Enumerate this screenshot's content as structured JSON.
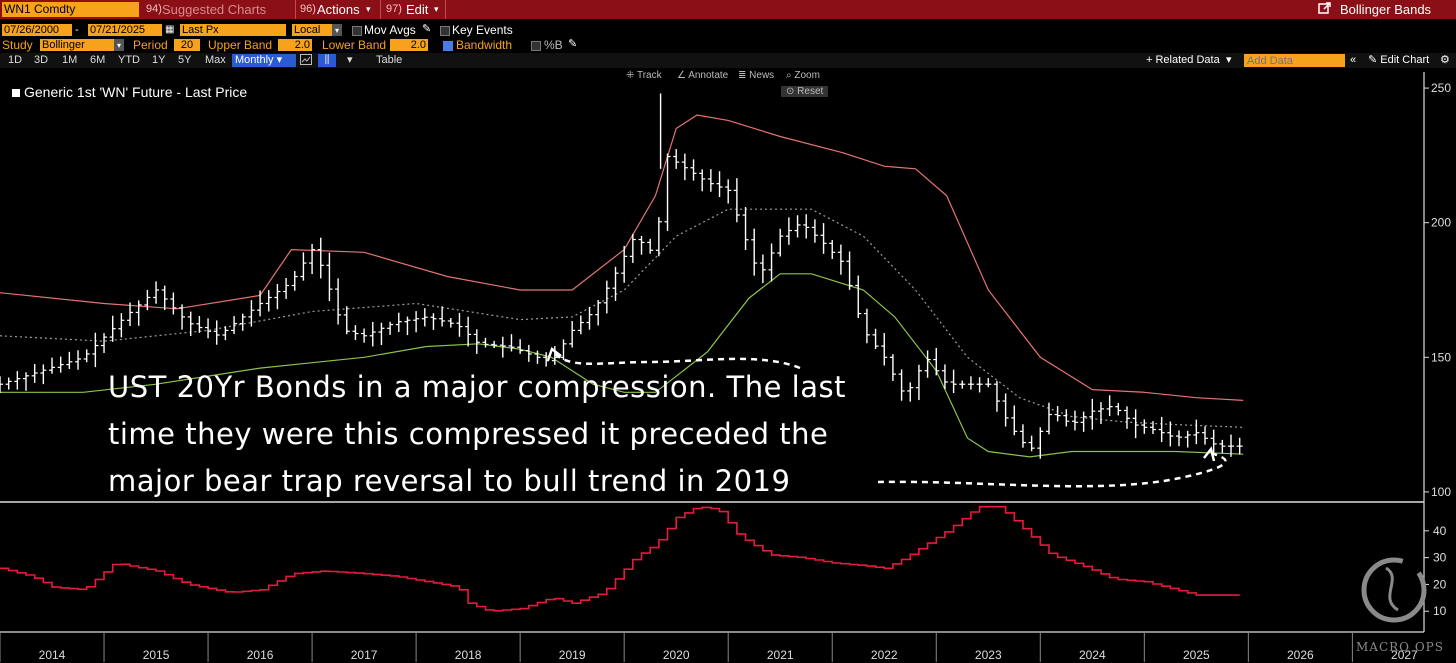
{
  "header": {
    "ticker": "WN1 Comdty",
    "suggested": "Suggested Charts",
    "suggested_num": "94)",
    "actions_num": "96)",
    "actions": "Actions",
    "edit_num": "97)",
    "edit": "Edit",
    "study_title": "Bollinger Bands"
  },
  "settings": {
    "date_start": "07/26/2000",
    "date_end": "07/21/2025",
    "dash": "-",
    "price_field": "Last Px",
    "currency": "Local CCY",
    "mov_avgs": "Mov Avgs",
    "key_events": "Key Events",
    "study_label": "Study",
    "study_value": "Bollinger",
    "period_label": "Period",
    "period_value": "20",
    "upper_label": "Upper Band",
    "upper_value": "2.0",
    "lower_label": "Lower Band",
    "lower_value": "2.0",
    "bandwidth": "Bandwidth",
    "percent_b": "%B"
  },
  "timeframes": [
    "1D",
    "3D",
    "1M",
    "6M",
    "YTD",
    "1Y",
    "5Y",
    "Max"
  ],
  "frequency": "Monthly",
  "table_label": "Table",
  "related_data": "+ Related Data",
  "add_data_placeholder": "Add Data",
  "edit_chart": "Edit Chart",
  "tools": {
    "track": "Track",
    "annotate": "Annotate",
    "news": "News",
    "zoom": "Zoom",
    "reset": "Reset"
  },
  "legend_label": "Generic 1st 'WN' Future - Last Price",
  "annotation": [
    "UST 20Yr Bonds in a major compression. The last",
    "time they were this compressed it preceded the",
    "major bear trap reversal to bull trend in 2019"
  ],
  "watermark": "MACRO OPS",
  "colors": {
    "price": "#ffffff",
    "upper_band": "#e57373",
    "middle_band": "#9e9e9e",
    "lower_band": "#8bc34a",
    "bandwidth": "#e8193c",
    "brand_bar": "#8b0f16",
    "accent": "#f7a21b"
  },
  "chart_data": [
    {
      "type": "line",
      "name": "price-panel",
      "legend": "Generic 1st 'WN' Future - Last Price",
      "y_ticks": [
        100,
        150,
        200,
        250
      ],
      "ylim": [
        97,
        253
      ],
      "xlim": [
        2013.5,
        2027.15
      ],
      "x_ticks": [
        "2014",
        "2015",
        "2016",
        "2017",
        "2018",
        "2019",
        "2020",
        "2021",
        "2022",
        "2023",
        "2024",
        "2025",
        "2026",
        "2027"
      ],
      "series": [
        {
          "name": "Last Price",
          "x": [
            2013.5,
            2013.9,
            2014.3,
            2014.7,
            2015.0,
            2015.3,
            2015.6,
            2016.0,
            2016.3,
            2016.5,
            2016.6,
            2016.8,
            2017.0,
            2017.3,
            2017.6,
            2017.9,
            2018.1,
            2018.4,
            2018.8,
            2019.0,
            2019.2,
            2019.4,
            2019.6,
            2019.8,
            2019.9,
            2020.1,
            2020.3,
            2020.5,
            2020.7,
            2020.8,
            2021.0,
            2021.2,
            2021.4,
            2021.6,
            2021.8,
            2022.0,
            2022.2,
            2022.4,
            2022.6,
            2022.8,
            2023.0,
            2023.2,
            2023.4,
            2023.6,
            2023.8,
            2024.0,
            2024.2,
            2024.4,
            2024.6,
            2024.8,
            2025.0,
            2025.2,
            2025.45
          ],
          "y": [
            140,
            145,
            150,
            165,
            175,
            163,
            158,
            170,
            178,
            190,
            183,
            160,
            158,
            163,
            165,
            162,
            155,
            154,
            148,
            160,
            167,
            180,
            195,
            188,
            225,
            220,
            215,
            212,
            190,
            180,
            195,
            200,
            193,
            185,
            160,
            150,
            135,
            150,
            140,
            140,
            140,
            125,
            115,
            130,
            125,
            130,
            132,
            125,
            123,
            120,
            122,
            117,
            117
          ]
        },
        {
          "name": "Upper Band",
          "x": [
            2013.5,
            2014.5,
            2015.2,
            2016.0,
            2016.3,
            2017.0,
            2017.8,
            2018.5,
            2019.0,
            2019.5,
            2019.8,
            2020.0,
            2020.2,
            2020.5,
            2021.0,
            2021.6,
            2022.0,
            2022.3,
            2022.6,
            2023.0,
            2023.5,
            2024.0,
            2024.5,
            2025.0,
            2025.45
          ],
          "y": [
            174,
            170,
            168,
            173,
            190,
            189,
            180,
            175,
            175,
            190,
            210,
            235,
            240,
            238,
            232,
            226,
            221,
            220,
            210,
            175,
            150,
            138,
            137,
            135,
            134
          ]
        },
        {
          "name": "Middle Band",
          "x": [
            2013.5,
            2014.5,
            2015.5,
            2016.5,
            2017.5,
            2018.0,
            2018.5,
            2019.0,
            2019.5,
            2020.0,
            2020.5,
            2020.8,
            2021.3,
            2021.8,
            2022.3,
            2022.8,
            2023.3,
            2023.8,
            2024.3,
            2024.8,
            2025.45
          ],
          "y": [
            158,
            156,
            160,
            167,
            170,
            167,
            164,
            165,
            175,
            195,
            205,
            205,
            205,
            195,
            175,
            150,
            135,
            128,
            126,
            125,
            124
          ]
        },
        {
          "name": "Lower Band",
          "x": [
            2013.5,
            2014.3,
            2015.0,
            2016.0,
            2016.5,
            2017.0,
            2017.6,
            2018.1,
            2018.5,
            2018.8,
            2019.2,
            2019.5,
            2019.8,
            2020.0,
            2020.3,
            2020.7,
            2021.0,
            2021.3,
            2021.8,
            2022.1,
            2022.5,
            2022.8,
            2023.0,
            2023.4,
            2023.8,
            2024.2,
            2024.8,
            2025.45
          ],
          "y": [
            137,
            137,
            140,
            146,
            148,
            150,
            154,
            155,
            153,
            150,
            140,
            137,
            137,
            143,
            152,
            172,
            181,
            181,
            175,
            165,
            145,
            120,
            115,
            113,
            115,
            115,
            115,
            114
          ]
        }
      ]
    },
    {
      "type": "line",
      "name": "bandwidth-panel",
      "y_ticks": [
        10,
        20,
        30,
        40
      ],
      "ylim": [
        3,
        50
      ],
      "xlim": [
        2013.5,
        2027.15
      ],
      "series": [
        {
          "name": "Bandwidth",
          "x": [
            2013.5,
            2013.8,
            2014.0,
            2014.3,
            2014.6,
            2015.0,
            2015.3,
            2015.7,
            2016.0,
            2016.3,
            2016.6,
            2017.0,
            2017.3,
            2017.6,
            2017.9,
            2018.0,
            2018.2,
            2018.5,
            2018.8,
            2019.0,
            2019.3,
            2019.6,
            2019.8,
            2020.0,
            2020.2,
            2020.4,
            2020.6,
            2020.9,
            2021.2,
            2021.5,
            2021.8,
            2022.0,
            2022.2,
            2022.4,
            2022.6,
            2022.9,
            2023.1,
            2023.3,
            2023.6,
            2023.9,
            2024.2,
            2024.5,
            2024.8,
            2025.0,
            2025.2,
            2025.45
          ],
          "y": [
            26,
            23,
            19,
            18,
            28,
            25,
            20,
            17,
            18,
            24,
            25,
            24,
            23,
            21,
            19,
            13,
            10,
            11,
            15,
            13,
            17,
            30,
            35,
            45,
            49,
            48,
            38,
            31,
            30,
            28,
            27,
            26,
            30,
            35,
            40,
            49,
            49,
            42,
            31,
            27,
            22,
            21,
            18,
            16,
            16,
            16
          ]
        }
      ]
    }
  ]
}
